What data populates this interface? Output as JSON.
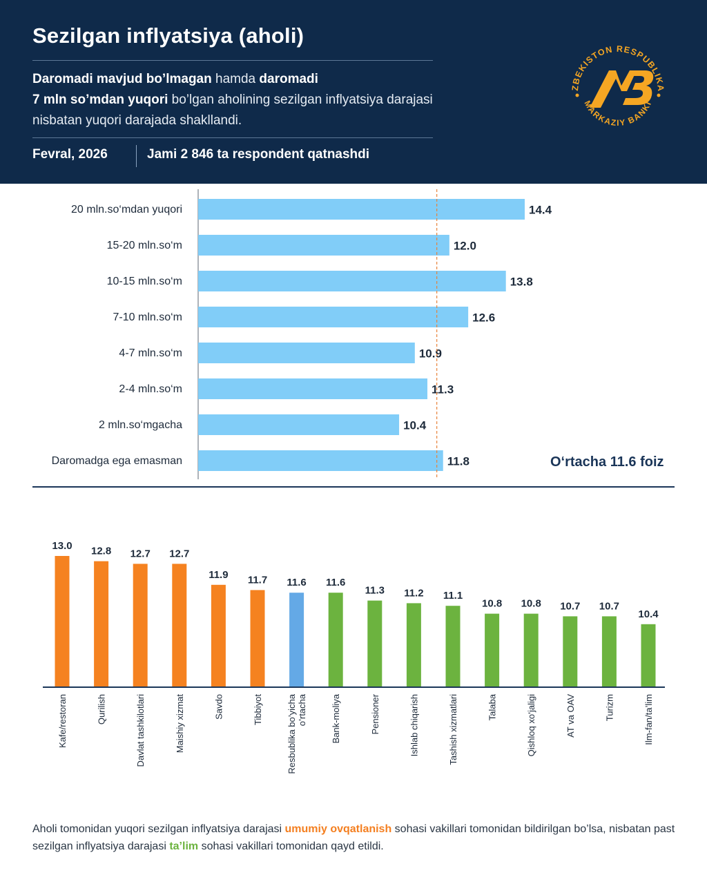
{
  "header": {
    "title": "Sezilgan inflyatsiya (aholi)",
    "lead": {
      "p1": "Daromadi mavjud bo’lmagan",
      "p2": " hamda ",
      "p3": "daromadi",
      "p4": "7 mln so’mdan yuqori",
      "p5": " bo’lgan aholining sezilgan inflyatsiya darajasi nisbatan yuqori darajada shakllandi."
    },
    "date": "Fevral, 2026",
    "respondents": "Jami 2 846 ta respondent qatnashdi"
  },
  "logo": {
    "ring_text": "O’ZBEKISTON RESPUBLIKASI",
    "ring_text_bottom": "MARKAZIY BANKI",
    "monogram": "MB"
  },
  "chart_data": [
    {
      "type": "bar",
      "orientation": "horizontal",
      "categories": [
        "20 mln.so‘mdan yuqori",
        "15-20 mln.so‘m",
        "10-15 mln.so‘m",
        "7-10 mln.so‘m",
        "4-7 mln.so‘m",
        "2-4 mln.so‘m",
        "2 mln.so‘mgacha",
        "Daromadga ega emasman"
      ],
      "values": [
        14.4,
        12.0,
        13.8,
        12.6,
        10.9,
        11.3,
        10.4,
        11.8
      ],
      "value_labels": [
        "14.4",
        "12.0",
        "13.8",
        "12.6",
        "10.9",
        "11.3",
        "10.4",
        "11.8"
      ],
      "xlim": [
        4,
        16
      ],
      "reference_line": {
        "value": 11.6,
        "label": "O‘rtacha 11.6 foiz"
      },
      "color": "#81cdf8"
    },
    {
      "type": "bar",
      "orientation": "vertical",
      "categories": [
        "Kafe/restoran",
        "Qurilish",
        "Davlat tashkilotlari",
        "Maishiy xizmat",
        "Savdo",
        "Tibbiyot",
        "Resbublika bo’yicha o’rtacha",
        "Bank-moliya",
        "Pensioner",
        "Ishlab chiqarish",
        "Tashish xizmatlari",
        "Talaba",
        "Qishloq xo‘jaligi",
        "AT va OAV",
        "Turizm",
        "Ilm-fan/ta’lim"
      ],
      "values": [
        13.0,
        12.8,
        12.7,
        12.7,
        11.9,
        11.7,
        11.6,
        11.6,
        11.3,
        11.2,
        11.1,
        10.8,
        10.8,
        10.7,
        10.7,
        10.4
      ],
      "value_labels": [
        "13.0",
        "12.8",
        "12.7",
        "12.7",
        "11.9",
        "11.7",
        "11.6",
        "11.6",
        "11.3",
        "11.2",
        "11.1",
        "10.8",
        "10.8",
        "10.7",
        "10.7",
        "10.4"
      ],
      "groups": [
        "high",
        "high",
        "high",
        "high",
        "high",
        "high",
        "average",
        "low",
        "low",
        "low",
        "low",
        "low",
        "low",
        "low",
        "low",
        "low"
      ],
      "ylim": [
        8.0,
        13.0
      ],
      "colors": {
        "high": "#f58220",
        "average": "#64a9e6",
        "low": "#6cb33f"
      }
    }
  ],
  "note": {
    "s1": "Aholi tomonidan yuqori sezilgan inflyatsiya darajasi ",
    "s2": "umumiy ovqatlanish",
    "s3": " sohasi vakillari tomonidan bildirilgan bo’lsa, nisbatan past sezilgan inflyatsiya darajasi ",
    "s4": "ta’lim",
    "s5": " sohasi vakillari tomonidan qayd etildi."
  },
  "colors": {
    "navy": "#0f2a4a",
    "gold": "#f5a623"
  }
}
